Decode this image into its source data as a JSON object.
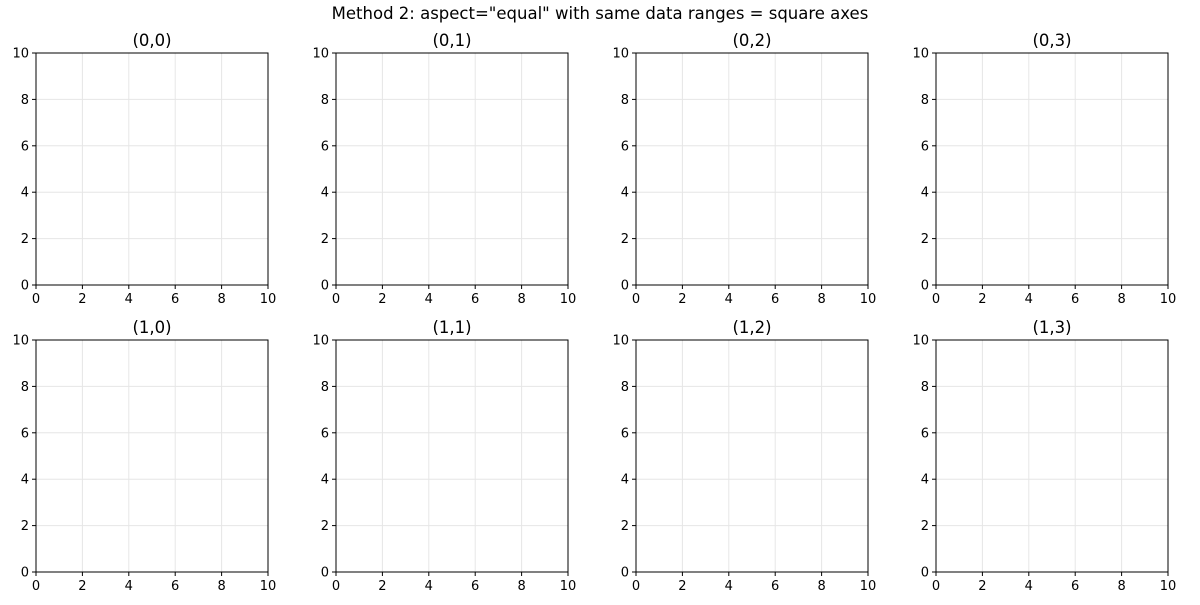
{
  "figure": {
    "suptitle": "Method 2: aspect=\"equal\" with same data ranges = square axes"
  },
  "style": {
    "grid_color": "#e6e6e6",
    "spine_color": "#000000",
    "background": "#ffffff"
  },
  "chart_data": [
    {
      "type": "scatter",
      "title": "(0,0)",
      "xlabel": "",
      "ylabel": "",
      "xlim": [
        0,
        10
      ],
      "ylim": [
        0,
        10
      ],
      "xticks": [
        0,
        2,
        4,
        6,
        8,
        10
      ],
      "yticks": [
        0,
        2,
        4,
        6,
        8,
        10
      ],
      "grid": true,
      "series": []
    },
    {
      "type": "scatter",
      "title": "(0,1)",
      "xlabel": "",
      "ylabel": "",
      "xlim": [
        0,
        10
      ],
      "ylim": [
        0,
        10
      ],
      "xticks": [
        0,
        2,
        4,
        6,
        8,
        10
      ],
      "yticks": [
        0,
        2,
        4,
        6,
        8,
        10
      ],
      "grid": true,
      "series": []
    },
    {
      "type": "scatter",
      "title": "(0,2)",
      "xlabel": "",
      "ylabel": "",
      "xlim": [
        0,
        10
      ],
      "ylim": [
        0,
        10
      ],
      "xticks": [
        0,
        2,
        4,
        6,
        8,
        10
      ],
      "yticks": [
        0,
        2,
        4,
        6,
        8,
        10
      ],
      "grid": true,
      "series": []
    },
    {
      "type": "scatter",
      "title": "(0,3)",
      "xlabel": "",
      "ylabel": "",
      "xlim": [
        0,
        10
      ],
      "ylim": [
        0,
        10
      ],
      "xticks": [
        0,
        2,
        4,
        6,
        8,
        10
      ],
      "yticks": [
        0,
        2,
        4,
        6,
        8,
        10
      ],
      "grid": true,
      "series": []
    },
    {
      "type": "scatter",
      "title": "(1,0)",
      "xlabel": "",
      "ylabel": "",
      "xlim": [
        0,
        10
      ],
      "ylim": [
        0,
        10
      ],
      "xticks": [
        0,
        2,
        4,
        6,
        8,
        10
      ],
      "yticks": [
        0,
        2,
        4,
        6,
        8,
        10
      ],
      "grid": true,
      "series": []
    },
    {
      "type": "scatter",
      "title": "(1,1)",
      "xlabel": "",
      "ylabel": "",
      "xlim": [
        0,
        10
      ],
      "ylim": [
        0,
        10
      ],
      "xticks": [
        0,
        2,
        4,
        6,
        8,
        10
      ],
      "yticks": [
        0,
        2,
        4,
        6,
        8,
        10
      ],
      "grid": true,
      "series": []
    },
    {
      "type": "scatter",
      "title": "(1,2)",
      "xlabel": "",
      "ylabel": "",
      "xlim": [
        0,
        10
      ],
      "ylim": [
        0,
        10
      ],
      "xticks": [
        0,
        2,
        4,
        6,
        8,
        10
      ],
      "yticks": [
        0,
        2,
        4,
        6,
        8,
        10
      ],
      "grid": true,
      "series": []
    },
    {
      "type": "scatter",
      "title": "(1,3)",
      "xlabel": "",
      "ylabel": "",
      "xlim": [
        0,
        10
      ],
      "ylim": [
        0,
        10
      ],
      "xticks": [
        0,
        2,
        4,
        6,
        8,
        10
      ],
      "yticks": [
        0,
        2,
        4,
        6,
        8,
        10
      ],
      "grid": true,
      "series": []
    }
  ]
}
